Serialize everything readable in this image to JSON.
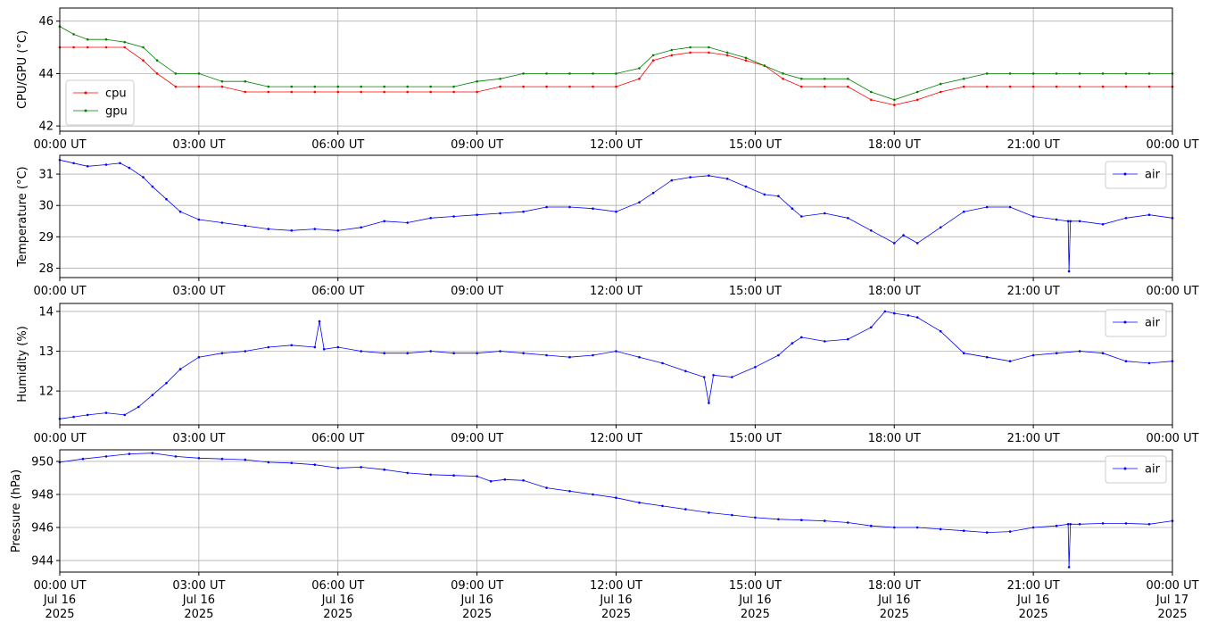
{
  "chart_data": [
    {
      "type": "line",
      "ylabel": "CPU/GPU (°C)",
      "ylim": [
        41.8,
        46.5
      ],
      "yticks": [
        "42",
        "44",
        "46"
      ],
      "xlim_hours": [
        0,
        24
      ],
      "xticks": [
        "00:00 UT",
        "03:00 UT",
        "06:00 UT",
        "09:00 UT",
        "12:00 UT",
        "15:00 UT",
        "18:00 UT",
        "21:00 UT",
        "00:00 UT"
      ],
      "grid": true,
      "legend_position": "lower-left",
      "series": [
        {
          "name": "cpu",
          "color": "#ff0000",
          "x_hours": [
            0,
            0.3,
            0.6,
            1.0,
            1.4,
            1.8,
            2.1,
            2.5,
            3.0,
            3.5,
            4.0,
            4.5,
            5.0,
            5.5,
            6.0,
            6.5,
            7.0,
            7.5,
            8.0,
            8.5,
            9.0,
            9.5,
            10.0,
            10.5,
            11.0,
            11.5,
            12.0,
            12.5,
            12.8,
            13.2,
            13.6,
            14.0,
            14.4,
            14.8,
            15.2,
            15.6,
            16.0,
            16.5,
            17.0,
            17.5,
            18.0,
            18.5,
            19.0,
            19.5,
            20.0,
            20.5,
            21.0,
            21.5,
            22.0,
            22.5,
            23.0,
            23.5,
            24.0
          ],
          "values": [
            45.0,
            45.0,
            45.0,
            45.0,
            45.0,
            44.5,
            44.0,
            43.5,
            43.5,
            43.5,
            43.3,
            43.3,
            43.3,
            43.3,
            43.3,
            43.3,
            43.3,
            43.3,
            43.3,
            43.3,
            43.3,
            43.5,
            43.5,
            43.5,
            43.5,
            43.5,
            43.5,
            43.8,
            44.5,
            44.7,
            44.8,
            44.8,
            44.7,
            44.5,
            44.3,
            43.8,
            43.5,
            43.5,
            43.5,
            43.0,
            42.8,
            43.0,
            43.3,
            43.5,
            43.5,
            43.5,
            43.5,
            43.5,
            43.5,
            43.5,
            43.5,
            43.5,
            43.5
          ]
        },
        {
          "name": "gpu",
          "color": "#008000",
          "x_hours": [
            0,
            0.3,
            0.6,
            1.0,
            1.4,
            1.8,
            2.1,
            2.5,
            3.0,
            3.5,
            4.0,
            4.5,
            5.0,
            5.5,
            6.0,
            6.5,
            7.0,
            7.5,
            8.0,
            8.5,
            9.0,
            9.5,
            10.0,
            10.5,
            11.0,
            11.5,
            12.0,
            12.5,
            12.8,
            13.2,
            13.6,
            14.0,
            14.4,
            14.8,
            15.2,
            15.6,
            16.0,
            16.5,
            17.0,
            17.5,
            18.0,
            18.5,
            19.0,
            19.5,
            20.0,
            20.5,
            21.0,
            21.5,
            22.0,
            22.5,
            23.0,
            23.5,
            24.0
          ],
          "values": [
            45.8,
            45.5,
            45.3,
            45.3,
            45.2,
            45.0,
            44.5,
            44.0,
            44.0,
            43.7,
            43.7,
            43.5,
            43.5,
            43.5,
            43.5,
            43.5,
            43.5,
            43.5,
            43.5,
            43.5,
            43.7,
            43.8,
            44.0,
            44.0,
            44.0,
            44.0,
            44.0,
            44.2,
            44.7,
            44.9,
            45.0,
            45.0,
            44.8,
            44.6,
            44.3,
            44.0,
            43.8,
            43.8,
            43.8,
            43.3,
            43.0,
            43.3,
            43.6,
            43.8,
            44.0,
            44.0,
            44.0,
            44.0,
            44.0,
            44.0,
            44.0,
            44.0,
            44.0
          ]
        }
      ]
    },
    {
      "type": "line",
      "ylabel": "Temperature (°C)",
      "ylim": [
        27.7,
        31.6
      ],
      "yticks": [
        "28",
        "29",
        "30",
        "31"
      ],
      "xlim_hours": [
        0,
        24
      ],
      "xticks": [
        "00:00 UT",
        "03:00 UT",
        "06:00 UT",
        "09:00 UT",
        "12:00 UT",
        "15:00 UT",
        "18:00 UT",
        "21:00 UT",
        "00:00 UT"
      ],
      "grid": true,
      "legend_position": "upper-right",
      "series": [
        {
          "name": "air",
          "color": "#0000ff",
          "x_hours": [
            0,
            0.3,
            0.6,
            1.0,
            1.3,
            1.5,
            1.8,
            2.0,
            2.3,
            2.6,
            3.0,
            3.5,
            4.0,
            4.5,
            5.0,
            5.5,
            6.0,
            6.5,
            7.0,
            7.5,
            8.0,
            8.5,
            9.0,
            9.5,
            10.0,
            10.5,
            11.0,
            11.5,
            12.0,
            12.5,
            12.8,
            13.2,
            13.6,
            14.0,
            14.4,
            14.8,
            15.2,
            15.5,
            15.8,
            16.0,
            16.5,
            17.0,
            17.5,
            18.0,
            18.2,
            18.5,
            19.0,
            19.5,
            20.0,
            20.5,
            21.0,
            21.5,
            21.75,
            21.77,
            21.8,
            22.0,
            22.5,
            23.0,
            23.5,
            24.0
          ],
          "values": [
            31.45,
            31.35,
            31.25,
            31.3,
            31.35,
            31.2,
            30.9,
            30.6,
            30.2,
            29.8,
            29.55,
            29.45,
            29.35,
            29.25,
            29.2,
            29.25,
            29.2,
            29.3,
            29.5,
            29.45,
            29.6,
            29.65,
            29.7,
            29.75,
            29.8,
            29.95,
            29.95,
            29.9,
            29.8,
            30.1,
            30.4,
            30.8,
            30.9,
            30.95,
            30.85,
            30.6,
            30.35,
            30.3,
            29.9,
            29.65,
            29.75,
            29.6,
            29.2,
            28.8,
            29.05,
            28.8,
            29.3,
            29.8,
            29.95,
            29.95,
            29.65,
            29.55,
            29.5,
            27.9,
            29.5,
            29.5,
            29.4,
            29.6,
            29.7,
            29.6
          ]
        }
      ]
    },
    {
      "type": "line",
      "ylabel": "Humidity (%)",
      "ylim": [
        11.15,
        14.2
      ],
      "yticks": [
        "12",
        "13",
        "14"
      ],
      "xlim_hours": [
        0,
        24
      ],
      "xticks": [
        "00:00 UT",
        "03:00 UT",
        "06:00 UT",
        "09:00 UT",
        "12:00 UT",
        "15:00 UT",
        "18:00 UT",
        "21:00 UT",
        "00:00 UT"
      ],
      "grid": true,
      "legend_position": "upper-right",
      "series": [
        {
          "name": "air",
          "color": "#0000ff",
          "x_hours": [
            0,
            0.3,
            0.6,
            1.0,
            1.4,
            1.7,
            2.0,
            2.3,
            2.6,
            3.0,
            3.5,
            4.0,
            4.5,
            5.0,
            5.5,
            5.6,
            5.7,
            6.0,
            6.5,
            7.0,
            7.5,
            8.0,
            8.5,
            9.0,
            9.5,
            10.0,
            10.5,
            11.0,
            11.5,
            12.0,
            12.5,
            13.0,
            13.5,
            13.9,
            14.0,
            14.1,
            14.5,
            15.0,
            15.5,
            15.8,
            16.0,
            16.5,
            17.0,
            17.5,
            17.8,
            18.0,
            18.3,
            18.5,
            19.0,
            19.5,
            20.0,
            20.5,
            21.0,
            21.5,
            22.0,
            22.5,
            23.0,
            23.5,
            24.0
          ],
          "values": [
            11.3,
            11.35,
            11.4,
            11.45,
            11.4,
            11.6,
            11.9,
            12.2,
            12.55,
            12.85,
            12.95,
            13.0,
            13.1,
            13.15,
            13.1,
            13.75,
            13.05,
            13.1,
            13.0,
            12.95,
            12.95,
            13.0,
            12.95,
            12.95,
            13.0,
            12.95,
            12.9,
            12.85,
            12.9,
            13.0,
            12.85,
            12.7,
            12.5,
            12.35,
            11.7,
            12.4,
            12.35,
            12.6,
            12.9,
            13.2,
            13.35,
            13.25,
            13.3,
            13.6,
            14.0,
            13.95,
            13.9,
            13.85,
            13.5,
            12.95,
            12.85,
            12.75,
            12.9,
            12.95,
            13.0,
            12.95,
            12.75,
            12.7,
            12.75
          ]
        }
      ]
    },
    {
      "type": "line",
      "ylabel": "Pressure (hPa)",
      "ylim": [
        943.3,
        950.7
      ],
      "yticks": [
        "944",
        "946",
        "948",
        "950"
      ],
      "xlim_hours": [
        0,
        24
      ],
      "xticks_line1": [
        "00:00 UT",
        "03:00 UT",
        "06:00 UT",
        "09:00 UT",
        "12:00 UT",
        "15:00 UT",
        "18:00 UT",
        "21:00 UT",
        "00:00 UT"
      ],
      "xticks_line2": [
        "Jul 16",
        "Jul 16",
        "Jul 16",
        "Jul 16",
        "Jul 16",
        "Jul 16",
        "Jul 16",
        "Jul 16",
        "Jul 17"
      ],
      "xticks_line3": [
        "2025",
        "2025",
        "2025",
        "2025",
        "2025",
        "2025",
        "2025",
        "2025",
        "2025"
      ],
      "grid": true,
      "legend_position": "upper-right",
      "series": [
        {
          "name": "air",
          "color": "#0000ff",
          "x_hours": [
            0,
            0.5,
            1.0,
            1.5,
            2.0,
            2.5,
            3.0,
            3.5,
            4.0,
            4.5,
            5.0,
            5.5,
            6.0,
            6.5,
            7.0,
            7.5,
            8.0,
            8.5,
            9.0,
            9.3,
            9.6,
            10.0,
            10.5,
            11.0,
            11.5,
            12.0,
            12.5,
            13.0,
            13.5,
            14.0,
            14.5,
            15.0,
            15.5,
            16.0,
            16.5,
            17.0,
            17.5,
            18.0,
            18.5,
            19.0,
            19.5,
            20.0,
            20.5,
            21.0,
            21.5,
            21.75,
            21.77,
            21.8,
            22.0,
            22.5,
            23.0,
            23.5,
            24.0
          ],
          "values": [
            949.95,
            950.15,
            950.3,
            950.45,
            950.5,
            950.3,
            950.2,
            950.15,
            950.1,
            949.95,
            949.9,
            949.8,
            949.6,
            949.65,
            949.5,
            949.3,
            949.2,
            949.15,
            949.1,
            948.8,
            948.9,
            948.85,
            948.4,
            948.2,
            948.0,
            947.8,
            947.5,
            947.3,
            947.1,
            946.9,
            946.75,
            946.6,
            946.5,
            946.45,
            946.4,
            946.3,
            946.1,
            946.0,
            946.0,
            945.9,
            945.8,
            945.7,
            945.75,
            946.0,
            946.1,
            946.2,
            943.6,
            946.2,
            946.2,
            946.25,
            946.25,
            946.2,
            946.4
          ]
        }
      ]
    }
  ]
}
